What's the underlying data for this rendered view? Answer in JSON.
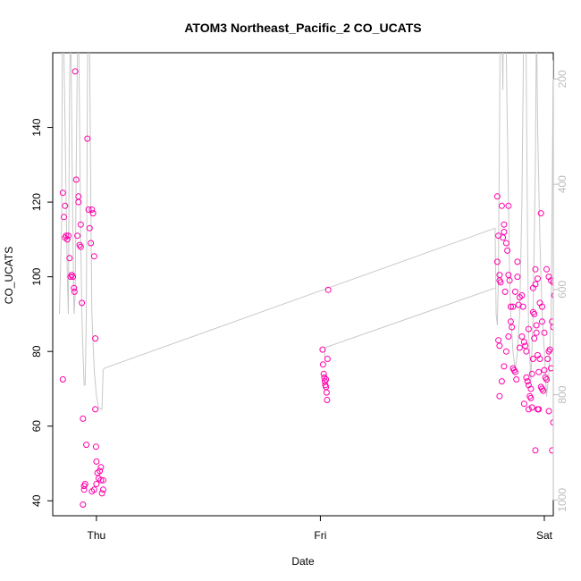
{
  "chart_data": {
    "type": "scatter",
    "title": "ATOM3 Northeast_Pacific_2 CO_UCATS",
    "xlabel": "Date",
    "ylabel": "CO_UCATS",
    "ylim": [
      36,
      160
    ],
    "y_ticks": [
      40,
      60,
      80,
      100,
      120,
      140
    ],
    "x_ticks": [
      {
        "label": "Thu",
        "value": 1.0
      },
      {
        "label": "Fri",
        "value": 2.0
      },
      {
        "label": "Sat",
        "value": 3.0
      }
    ],
    "xlim": [
      0.805,
      3.04
    ],
    "y2_ticks": [
      200,
      400,
      600,
      800,
      1000
    ],
    "y2lim": [
      1030,
      150
    ],
    "y2_reversed": true,
    "grid": false,
    "colors": {
      "points": "#ff00aa",
      "profile": "#c8c8c8",
      "axis": "#000000",
      "axis2": "#bdbdbd"
    },
    "series": [
      {
        "kind": "points",
        "values": [
          [
            0.85,
            122.5
          ],
          [
            0.855,
            116
          ],
          [
            0.86,
            119
          ],
          [
            0.86,
            110.5
          ],
          [
            0.865,
            111
          ],
          [
            0.87,
            110
          ],
          [
            0.875,
            111
          ],
          [
            0.88,
            105
          ],
          [
            0.885,
            100
          ],
          [
            0.89,
            100.5
          ],
          [
            0.895,
            100
          ],
          [
            0.9,
            97
          ],
          [
            0.902,
            96
          ],
          [
            0.905,
            155
          ],
          [
            0.91,
            126
          ],
          [
            0.915,
            111
          ],
          [
            0.92,
            121.5
          ],
          [
            0.92,
            120
          ],
          [
            0.925,
            108.5
          ],
          [
            0.93,
            114
          ],
          [
            0.93,
            108
          ],
          [
            0.935,
            93
          ],
          [
            0.85,
            72.5
          ],
          [
            0.94,
            62
          ],
          [
            0.945,
            44
          ],
          [
            0.945,
            43
          ],
          [
            0.95,
            44.5
          ],
          [
            0.955,
            55
          ],
          [
            0.96,
            137
          ],
          [
            0.965,
            118
          ],
          [
            0.97,
            113
          ],
          [
            0.975,
            109
          ],
          [
            0.98,
            118
          ],
          [
            0.985,
            117
          ],
          [
            0.99,
            105.5
          ],
          [
            0.995,
            83.5
          ],
          [
            0.995,
            64.5
          ],
          [
            0.998,
            54.5
          ],
          [
            1.0,
            50.5
          ],
          [
            1.005,
            47.5
          ],
          [
            1.01,
            46
          ],
          [
            1.015,
            48
          ],
          [
            1.02,
            49
          ],
          [
            1.02,
            45.5
          ],
          [
            1.025,
            42
          ],
          [
            1.03,
            43
          ],
          [
            1.03,
            45.5
          ],
          [
            1.0,
            44.5
          ],
          [
            0.99,
            43
          ],
          [
            0.98,
            42.5
          ],
          [
            0.94,
            39
          ],
          [
            2.01,
            80.5
          ],
          [
            2.012,
            76.5
          ],
          [
            2.015,
            74
          ],
          [
            2.018,
            73
          ],
          [
            2.02,
            72
          ],
          [
            2.022,
            71
          ],
          [
            2.025,
            70.5
          ],
          [
            2.028,
            69
          ],
          [
            2.03,
            67
          ],
          [
            2.032,
            78
          ],
          [
            2.035,
            96.5
          ],
          [
            2.025,
            72.5
          ],
          [
            2.79,
            121.5
          ],
          [
            2.79,
            104
          ],
          [
            2.795,
            111
          ],
          [
            2.8,
            100.5
          ],
          [
            2.8,
            99
          ],
          [
            2.805,
            98.5
          ],
          [
            2.81,
            119
          ],
          [
            2.815,
            110.5
          ],
          [
            2.82,
            114
          ],
          [
            2.82,
            112
          ],
          [
            2.825,
            96
          ],
          [
            2.83,
            109
          ],
          [
            2.835,
            107
          ],
          [
            2.84,
            100.5
          ],
          [
            2.84,
            119
          ],
          [
            2.845,
            99
          ],
          [
            2.85,
            92
          ],
          [
            2.855,
            86.5
          ],
          [
            2.86,
            75.5
          ],
          [
            2.865,
            75
          ],
          [
            2.87,
            74.5
          ],
          [
            2.875,
            72.5
          ],
          [
            2.88,
            104
          ],
          [
            2.885,
            92.5
          ],
          [
            2.89,
            94.5
          ],
          [
            2.9,
            95
          ],
          [
            2.905,
            92
          ],
          [
            2.91,
            82.5
          ],
          [
            2.915,
            81.5
          ],
          [
            2.92,
            73
          ],
          [
            2.925,
            72
          ],
          [
            2.93,
            71
          ],
          [
            2.935,
            68
          ],
          [
            2.94,
            67.5
          ],
          [
            2.945,
            65
          ],
          [
            2.95,
            90.5
          ],
          [
            2.955,
            90
          ],
          [
            2.96,
            98
          ],
          [
            2.965,
            85
          ],
          [
            2.97,
            79
          ],
          [
            2.975,
            74.5
          ],
          [
            2.98,
            78
          ],
          [
            2.985,
            70.5
          ],
          [
            2.99,
            70
          ],
          [
            2.995,
            69.5
          ],
          [
            3.0,
            75
          ],
          [
            3.005,
            73
          ],
          [
            3.01,
            72.5
          ],
          [
            3.015,
            78
          ],
          [
            3.02,
            80
          ],
          [
            3.025,
            80.5
          ],
          [
            3.03,
            75.5
          ],
          [
            3.035,
            88
          ],
          [
            3.04,
            86.5
          ],
          [
            2.95,
            97
          ],
          [
            2.96,
            102
          ],
          [
            2.97,
            99.5
          ],
          [
            2.98,
            93
          ],
          [
            2.99,
            88
          ],
          [
            3.0,
            85
          ],
          [
            3.01,
            102
          ],
          [
            3.02,
            100
          ],
          [
            3.03,
            99
          ],
          [
            3.04,
            98.5
          ],
          [
            2.985,
            117
          ],
          [
            2.97,
            64.5
          ],
          [
            2.975,
            64.5
          ],
          [
            2.96,
            53.5
          ],
          [
            3.035,
            53.5
          ],
          [
            3.04,
            61
          ],
          [
            3.02,
            64
          ],
          [
            2.93,
            64.5
          ],
          [
            2.94,
            70
          ],
          [
            2.945,
            74
          ],
          [
            2.95,
            78
          ],
          [
            2.955,
            83.5
          ],
          [
            2.965,
            87
          ],
          [
            2.99,
            92
          ],
          [
            2.8,
            68
          ],
          [
            2.81,
            72
          ],
          [
            2.82,
            76
          ],
          [
            2.83,
            80
          ],
          [
            2.84,
            84
          ],
          [
            2.85,
            88
          ],
          [
            2.86,
            92
          ],
          [
            2.87,
            96
          ],
          [
            2.88,
            100
          ],
          [
            2.89,
            81
          ],
          [
            2.9,
            84
          ],
          [
            2.91,
            66
          ],
          [
            2.92,
            80
          ],
          [
            2.93,
            86
          ],
          [
            2.795,
            83
          ],
          [
            2.8,
            81.5
          ],
          [
            3.045,
            95
          ]
        ]
      },
      {
        "kind": "profile",
        "values": [
          [
            0.835,
            90
          ],
          [
            0.845,
            115
          ],
          [
            0.85,
            200
          ],
          [
            0.855,
            160
          ],
          [
            0.86,
            140
          ],
          [
            0.865,
            120
          ],
          [
            0.87,
            100
          ],
          [
            0.875,
            90
          ],
          [
            0.88,
            150
          ],
          [
            0.885,
            170
          ],
          [
            0.89,
            140
          ],
          [
            0.895,
            110
          ],
          [
            0.9,
            90
          ],
          [
            0.905,
            95
          ],
          [
            0.91,
            130
          ],
          [
            0.915,
            160
          ],
          [
            0.92,
            170
          ],
          [
            0.925,
            140
          ],
          [
            0.93,
            110
          ],
          [
            0.935,
            90
          ],
          [
            0.94,
            80
          ],
          [
            0.945,
            71
          ],
          [
            0.95,
            71
          ],
          [
            0.955,
            90
          ],
          [
            0.96,
            150
          ],
          [
            0.965,
            200
          ],
          [
            0.97,
            160
          ],
          [
            0.975,
            120
          ],
          [
            0.98,
            90
          ],
          [
            0.99,
            75
          ],
          [
            1.0,
            68
          ],
          [
            1.01,
            65
          ],
          [
            1.02,
            64.5
          ],
          [
            1.025,
            64.5
          ],
          [
            1.03,
            75
          ],
          [
            1.035,
            75.5
          ],
          [
            2.78,
            113
          ],
          [
            2.785,
            90
          ],
          [
            2.79,
            87
          ],
          [
            2.795,
            100
          ],
          [
            2.8,
            140
          ],
          [
            2.805,
            200
          ],
          [
            2.81,
            170
          ],
          [
            2.815,
            150
          ],
          [
            2.82,
            200
          ],
          [
            2.825,
            180
          ],
          [
            2.83,
            160
          ],
          [
            2.835,
            140
          ],
          [
            2.84,
            120
          ],
          [
            2.845,
            100
          ],
          [
            2.85,
            90
          ],
          [
            2.86,
            80
          ],
          [
            2.87,
            75
          ],
          [
            2.88,
            80
          ],
          [
            2.89,
            90
          ],
          [
            2.9,
            120
          ],
          [
            2.905,
            150
          ],
          [
            2.91,
            180
          ],
          [
            2.915,
            200
          ],
          [
            2.92,
            150
          ],
          [
            2.925,
            110
          ],
          [
            2.93,
            85
          ],
          [
            2.94,
            72
          ],
          [
            2.95,
            90
          ],
          [
            2.96,
            130
          ],
          [
            2.965,
            170
          ],
          [
            2.97,
            140
          ],
          [
            2.98,
            110
          ],
          [
            2.99,
            90
          ],
          [
            3.0,
            80
          ],
          [
            3.01,
            68
          ],
          [
            3.02,
            74
          ],
          [
            3.03,
            90
          ],
          [
            3.035,
            120
          ],
          [
            3.04,
            158
          ],
          [
            3.045,
            100
          ]
        ]
      },
      {
        "kind": "profile",
        "values": [
          [
            2.02,
            81
          ],
          [
            2.78,
            97
          ]
        ]
      },
      {
        "kind": "profile",
        "values": [
          [
            2.02,
            81
          ],
          [
            2.02,
            78
          ]
        ]
      }
    ]
  }
}
